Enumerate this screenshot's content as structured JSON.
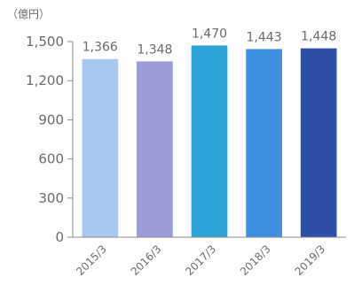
{
  "chart_data": {
    "type": "bar",
    "unit_label": "（億円）",
    "categories": [
      "2015/3",
      "2016/3",
      "2017/3",
      "2018/3",
      "2019/3"
    ],
    "values": [
      1366,
      1348,
      1470,
      1443,
      1448
    ],
    "value_labels": [
      "1,366",
      "1,348",
      "1,470",
      "1,443",
      "1,448"
    ],
    "y_ticks": [
      0,
      300,
      600,
      900,
      1200,
      1500
    ],
    "y_tick_labels": [
      "0",
      "300",
      "600",
      "900",
      "1,200",
      "1,500"
    ],
    "ylim": [
      0,
      1500
    ],
    "grid": false,
    "colors": [
      "#a9c8ef",
      "#9b9bd7",
      "#2da3d8",
      "#3f8fe0",
      "#2d4fa6"
    ],
    "axis_color": "#8a8a8a"
  }
}
